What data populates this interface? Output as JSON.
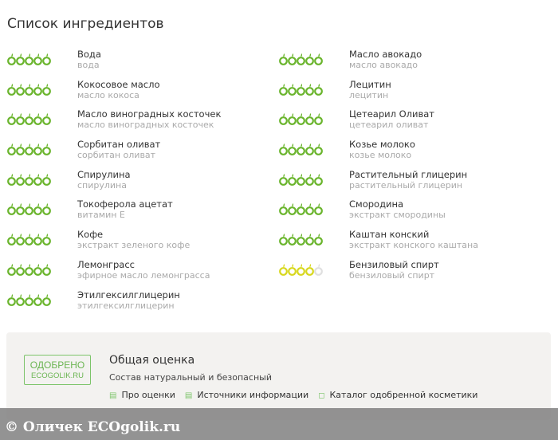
{
  "title": "Список ингредиентов",
  "colors": {
    "green": "#6bb52e",
    "yellow": "#d8d820",
    "empty": "#e0e0e0"
  },
  "left": [
    {
      "name": "Вода",
      "sub": "вода",
      "rating": 5,
      "color": "green"
    },
    {
      "name": "Кокосовое масло",
      "sub": "масло кокоса",
      "rating": 5,
      "color": "green"
    },
    {
      "name": "Масло виноградных косточек",
      "sub": "масло виноградных косточек",
      "rating": 5,
      "color": "green"
    },
    {
      "name": "Сорбитан оливат",
      "sub": "сорбитан оливат",
      "rating": 5,
      "color": "green"
    },
    {
      "name": "Спирулина",
      "sub": "спирулина",
      "rating": 5,
      "color": "green"
    },
    {
      "name": "Токоферола ацетат",
      "sub": "витамин Е",
      "rating": 5,
      "color": "green"
    },
    {
      "name": "Кофе",
      "sub": "экстракт зеленого кофе",
      "rating": 5,
      "color": "green"
    },
    {
      "name": "Лемонграсс",
      "sub": "эфирное масло лемонграсса",
      "rating": 5,
      "color": "green"
    },
    {
      "name": "Этилгексилглицерин",
      "sub": "этилгексилглицерин",
      "rating": 5,
      "color": "green"
    }
  ],
  "right": [
    {
      "name": "Масло авокадо",
      "sub": "масло авокадо",
      "rating": 5,
      "color": "green"
    },
    {
      "name": "Лецитин",
      "sub": "лецитин",
      "rating": 5,
      "color": "green"
    },
    {
      "name": "Цетеарил Оливат",
      "sub": "цетеарил оливат",
      "rating": 5,
      "color": "green"
    },
    {
      "name": "Козье молоко",
      "sub": "козье молоко",
      "rating": 5,
      "color": "green"
    },
    {
      "name": "Растительный глицерин",
      "sub": "растительный глицерин",
      "rating": 5,
      "color": "green"
    },
    {
      "name": "Смородина",
      "sub": "экстракт смородины",
      "rating": 5,
      "color": "green"
    },
    {
      "name": "Каштан конский",
      "sub": "экстракт конского каштана",
      "rating": 5,
      "color": "green"
    },
    {
      "name": "Бензиловый спирт",
      "sub": "бензиловый спирт",
      "rating": 4,
      "color": "yellow"
    }
  ],
  "summary": {
    "badge_line1": "ОДОБРЕНО",
    "badge_line2": "ECOGOLIK.RU",
    "title": "Общая оценка",
    "desc": "Состав натуральный и безопасный",
    "links": [
      "Про оценки",
      "Источники информации",
      "Каталог одобренной косметики"
    ]
  },
  "watermark": "© Оличек ECOgolik.ru"
}
